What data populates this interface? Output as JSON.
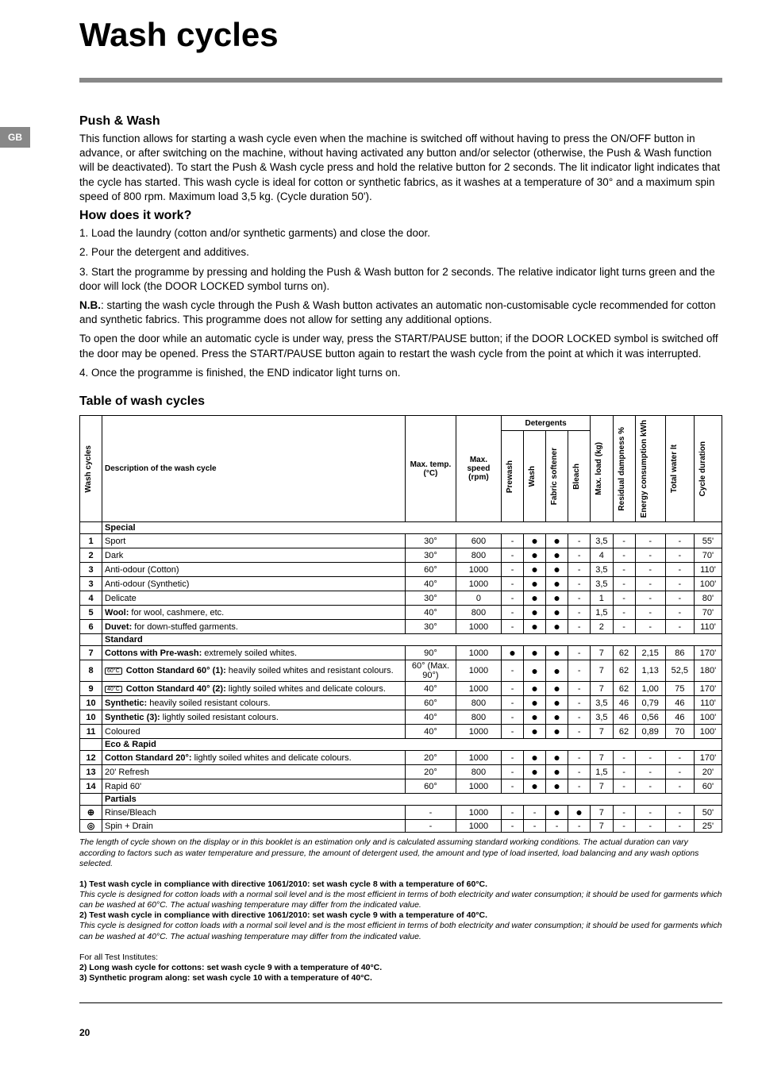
{
  "lang_tab": "GB",
  "title": "Wash cycles",
  "section1_title": "Push & Wash",
  "section1_body": "This function allows for starting a wash cycle even when the machine is switched off without having to press the ON/OFF button in advance, or after switching on the machine, without having activated any button and/or selector (otherwise, the Push & Wash function will be deactivated). To start the Push & Wash cycle press and hold the relative button for 2 seconds. The lit indicator light indicates that the cycle has started. This wash cycle is ideal for cotton or synthetic fabrics, as it washes at a temperature of 30° and a maximum spin speed of 800 rpm. Maximum load 3,5 kg. (Cycle duration 50').",
  "how_title": "How does it work?",
  "how_1": "1. Load the laundry (cotton and/or synthetic garments) and close the door.",
  "how_2": "2. Pour the detergent and additives.",
  "how_3a": "3. Start the programme by pressing and holding the Push & Wash button for 2 seconds. The relative indicator light turns green and the door will lock (the DOOR LOCKED symbol turns on).",
  "nb_label": "N.B.",
  "nb_text": ": starting the wash cycle through the Push & Wash button activates an automatic non-customisable cycle recommended for cotton and synthetic fabrics. This programme does not allow for setting any additional options.",
  "open_door": "To open the door while an automatic cycle is under way, press the START/PAUSE button; if the DOOR LOCKED symbol is switched off the door may be opened. Press the START/PAUSE button again to restart the wash cycle from the point at which it was interrupted.",
  "how_4": "4. Once the programme is finished, the END indicator light turns on.",
  "table_title": "Table of wash cycles",
  "headers": {
    "wash_cycles": "Wash cycles",
    "description": "Description of the wash cycle",
    "max_temp": "Max. temp. (°C)",
    "max_speed": "Max. speed (rpm)",
    "detergents": "Detergents",
    "prewash": "Prewash",
    "wash": "Wash",
    "softener": "Fabric softener",
    "bleach": "Bleach",
    "max_load": "Max. load (kg)",
    "dampness": "Residual dampness %",
    "energy": "Energy consumption kWh",
    "water": "Total water lt",
    "duration": "Cycle duration"
  },
  "sections": {
    "special": "Special",
    "standard": "Standard",
    "eco": "Eco & Rapid",
    "partials": "Partials"
  },
  "rows": [
    {
      "n": "1",
      "desc": "Sport",
      "temp": "30°",
      "speed": "600",
      "pre": "-",
      "wash": "●",
      "soft": "●",
      "bleach": "-",
      "load": "3,5",
      "damp": "-",
      "energy": "-",
      "water": "-",
      "dur": "55'"
    },
    {
      "n": "2",
      "desc": "Dark",
      "temp": "30°",
      "speed": "800",
      "pre": "-",
      "wash": "●",
      "soft": "●",
      "bleach": "-",
      "load": "4",
      "damp": "-",
      "energy": "-",
      "water": "-",
      "dur": "70'"
    },
    {
      "n": "3",
      "desc": "Anti-odour (Cotton)",
      "temp": "60°",
      "speed": "1000",
      "pre": "-",
      "wash": "●",
      "soft": "●",
      "bleach": "-",
      "load": "3,5",
      "damp": "-",
      "energy": "-",
      "water": "-",
      "dur": "110'"
    },
    {
      "n": "3",
      "desc": "Anti-odour (Synthetic)",
      "temp": "40°",
      "speed": "1000",
      "pre": "-",
      "wash": "●",
      "soft": "●",
      "bleach": "-",
      "load": "3,5",
      "damp": "-",
      "energy": "-",
      "water": "-",
      "dur": "100'"
    },
    {
      "n": "4",
      "desc": "Delicate",
      "temp": "30°",
      "speed": "0",
      "pre": "-",
      "wash": "●",
      "soft": "●",
      "bleach": "-",
      "load": "1",
      "damp": "-",
      "energy": "-",
      "water": "-",
      "dur": "80'"
    },
    {
      "n": "5",
      "desc_b": "Wool:",
      "desc_r": " for wool, cashmere, etc.",
      "temp": "40°",
      "speed": "800",
      "pre": "-",
      "wash": "●",
      "soft": "●",
      "bleach": "-",
      "load": "1,5",
      "damp": "-",
      "energy": "-",
      "water": "-",
      "dur": "70'"
    },
    {
      "n": "6",
      "desc_b": "Duvet:",
      "desc_r": " for down-stuffed garments.",
      "temp": "30°",
      "speed": "1000",
      "pre": "-",
      "wash": "●",
      "soft": "●",
      "bleach": "-",
      "load": "2",
      "damp": "-",
      "energy": "-",
      "water": "-",
      "dur": "110'"
    },
    {
      "n": "7",
      "desc_b": "Cottons with Pre-wash:",
      "desc_r": " extremely soiled whites.",
      "temp": "90°",
      "speed": "1000",
      "pre": "●",
      "wash": "●",
      "soft": "●",
      "bleach": "-",
      "load": "7",
      "damp": "62",
      "energy": "2,15",
      "water": "86",
      "dur": "170'"
    },
    {
      "n": "8",
      "icon": "60°C",
      "desc_b": "Cotton Standard 60° (1):",
      "desc_r": " heavily soiled whites and resistant colours.",
      "temp": "60° (Max. 90°)",
      "speed": "1000",
      "pre": "-",
      "wash": "●",
      "soft": "●",
      "bleach": "-",
      "load": "7",
      "damp": "62",
      "energy": "1,13",
      "water": "52,5",
      "dur": "180'"
    },
    {
      "n": "9",
      "icon": "40°C",
      "desc_b": "Cotton Standard 40° (2):",
      "desc_r": " lightly soiled whites and delicate colours.",
      "temp": "40°",
      "speed": "1000",
      "pre": "-",
      "wash": "●",
      "soft": "●",
      "bleach": "-",
      "load": "7",
      "damp": "62",
      "energy": "1,00",
      "water": "75",
      "dur": "170'"
    },
    {
      "n": "10",
      "desc_b": "Synthetic:",
      "desc_r": " heavily soiled resistant colours.",
      "temp": "60°",
      "speed": "800",
      "pre": "-",
      "wash": "●",
      "soft": "●",
      "bleach": "-",
      "load": "3,5",
      "damp": "46",
      "energy": "0,79",
      "water": "46",
      "dur": "110'"
    },
    {
      "n": "10",
      "desc_b": "Synthetic (3):",
      "desc_r": " lightly soiled resistant colours.",
      "temp": "40°",
      "speed": "800",
      "pre": "-",
      "wash": "●",
      "soft": "●",
      "bleach": "-",
      "load": "3,5",
      "damp": "46",
      "energy": "0,56",
      "water": "46",
      "dur": "100'"
    },
    {
      "n": "11",
      "desc": "Coloured",
      "temp": "40°",
      "speed": "1000",
      "pre": "-",
      "wash": "●",
      "soft": "●",
      "bleach": "-",
      "load": "7",
      "damp": "62",
      "energy": "0,89",
      "water": "70",
      "dur": "100'"
    },
    {
      "n": "12",
      "desc_b": "Cotton Standard 20°:",
      "desc_r": " lightly soiled whites and delicate colours.",
      "temp": "20°",
      "speed": "1000",
      "pre": "-",
      "wash": "●",
      "soft": "●",
      "bleach": "-",
      "load": "7",
      "damp": "-",
      "energy": "-",
      "water": "-",
      "dur": "170'"
    },
    {
      "n": "13",
      "desc": "20' Refresh",
      "temp": "20°",
      "speed": "800",
      "pre": "-",
      "wash": "●",
      "soft": "●",
      "bleach": "-",
      "load": "1,5",
      "damp": "-",
      "energy": "-",
      "water": "-",
      "dur": "20'"
    },
    {
      "n": "14",
      "desc": "Rapid 60'",
      "temp": "60°",
      "speed": "1000",
      "pre": "-",
      "wash": "●",
      "soft": "●",
      "bleach": "-",
      "load": "7",
      "damp": "-",
      "energy": "-",
      "water": "-",
      "dur": "60'"
    },
    {
      "n": "⊕",
      "desc": "Rinse/Bleach",
      "temp": "-",
      "speed": "1000",
      "pre": "-",
      "wash": "-",
      "soft": "●",
      "bleach": "●",
      "load": "7",
      "damp": "-",
      "energy": "-",
      "water": "-",
      "dur": "50'"
    },
    {
      "n": "◎",
      "desc": "Spin + Drain",
      "temp": "-",
      "speed": "1000",
      "pre": "-",
      "wash": "-",
      "soft": "-",
      "bleach": "-",
      "load": "7",
      "damp": "-",
      "energy": "-",
      "water": "-",
      "dur": "25'"
    }
  ],
  "foot_intro": "The length of cycle shown on the display or in this booklet is an estimation only and is calculated assuming standard working conditions. The actual duration can vary according to factors such as water temperature and pressure, the amount of detergent used, the amount and type of load inserted, load balancing and any wash options selected.",
  "foot1_b": "1) Test wash cycle in compliance with directive 1061/2010: set wash cycle 8 with a temperature of 60°C.",
  "foot1_i": "This cycle is designed for cotton loads with a normal soil level and is the most efficient in terms of both electricity and water consumption; it should be used for garments which can be washed at 60°C. The actual washing temperature may differ from the indicated value.",
  "foot2_b": "2) Test wash cycle in compliance with directive 1061/2010: set wash cycle 9 with a temperature of 40°C.",
  "foot2_i": "This cycle is designed for cotton loads with a normal soil level and is the most efficient in terms of both electricity and water consumption; it should be used for garments which can be washed at 40°C. The actual washing temperature may differ from the indicated value.",
  "foot_inst_title": "For all Test Institutes:",
  "foot_inst_2": "2) Long wash cycle for cottons: set wash cycle 9 with a temperature of 40°C.",
  "foot_inst_3": "3) Synthetic program along: set wash cycle 10 with a temperature of 40°C.",
  "page_number": "20"
}
